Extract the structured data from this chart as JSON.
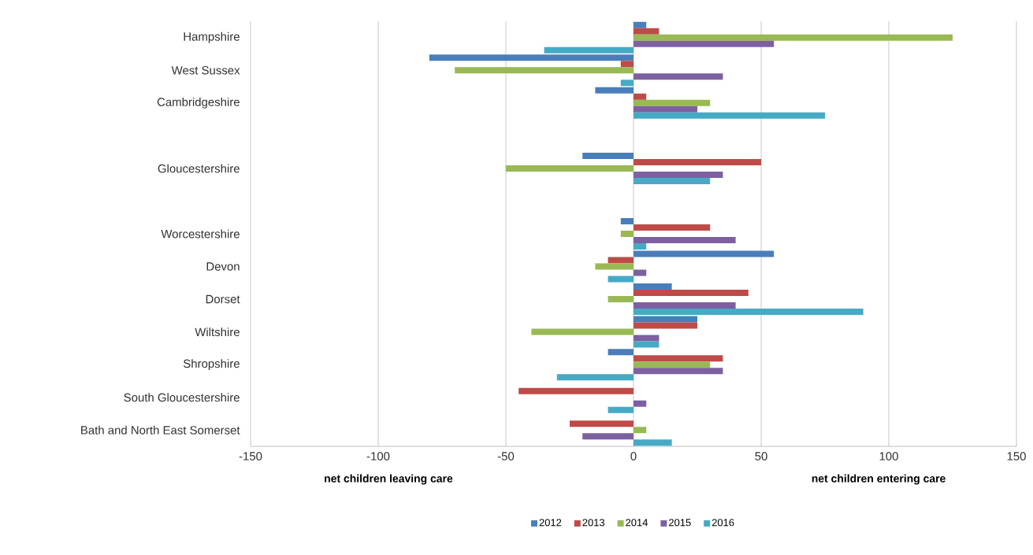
{
  "chart_data": {
    "type": "bar",
    "orientation": "horizontal",
    "categories": [
      "Hampshire",
      "West Sussex",
      "Cambridgeshire",
      null,
      "Gloucestershire",
      null,
      "Worcestershire",
      "Devon",
      "Dorset",
      "Wiltshire",
      "Shropshire",
      "South Gloucestershire",
      "Bath and North East Somerset"
    ],
    "series": [
      {
        "name": "2012",
        "color": "#4a7ebb",
        "values": [
          5,
          -80,
          -15,
          null,
          -20,
          null,
          -5,
          55,
          15,
          25,
          -10,
          0,
          0
        ]
      },
      {
        "name": "2013",
        "color": "#be4b48",
        "values": [
          10,
          -5,
          5,
          null,
          50,
          null,
          30,
          -10,
          45,
          25,
          35,
          -45,
          -25
        ]
      },
      {
        "name": "2014",
        "color": "#98b954",
        "values": [
          125,
          -70,
          30,
          null,
          -50,
          null,
          -5,
          -15,
          -10,
          -40,
          30,
          0,
          5
        ]
      },
      {
        "name": "2015",
        "color": "#7d60a0",
        "values": [
          55,
          35,
          25,
          null,
          35,
          null,
          40,
          5,
          40,
          10,
          35,
          5,
          -20
        ]
      },
      {
        "name": "2016",
        "color": "#46aac5",
        "values": [
          -35,
          -5,
          75,
          null,
          30,
          null,
          5,
          -10,
          90,
          10,
          -30,
          -10,
          15
        ]
      }
    ],
    "xlim": [
      -150,
      150
    ],
    "xticks": [
      -150,
      -100,
      -50,
      0,
      50,
      100,
      150
    ],
    "grid": "x",
    "legend": "bottom",
    "annotations": [
      "net  children leaving care",
      "net children entering care"
    ]
  }
}
